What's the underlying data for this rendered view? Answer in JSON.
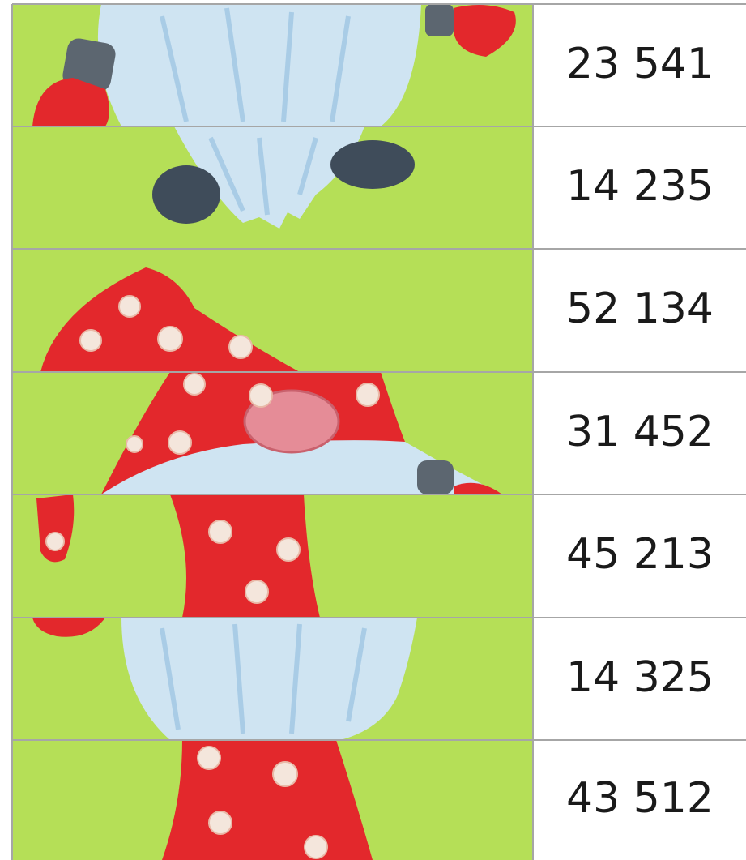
{
  "rows": [
    {
      "number": "23 541"
    },
    {
      "number": "14 235"
    },
    {
      "number": "52 134"
    },
    {
      "number": "31 452"
    },
    {
      "number": "45 213"
    },
    {
      "number": "14 325"
    },
    {
      "number": "43 512"
    }
  ]
}
